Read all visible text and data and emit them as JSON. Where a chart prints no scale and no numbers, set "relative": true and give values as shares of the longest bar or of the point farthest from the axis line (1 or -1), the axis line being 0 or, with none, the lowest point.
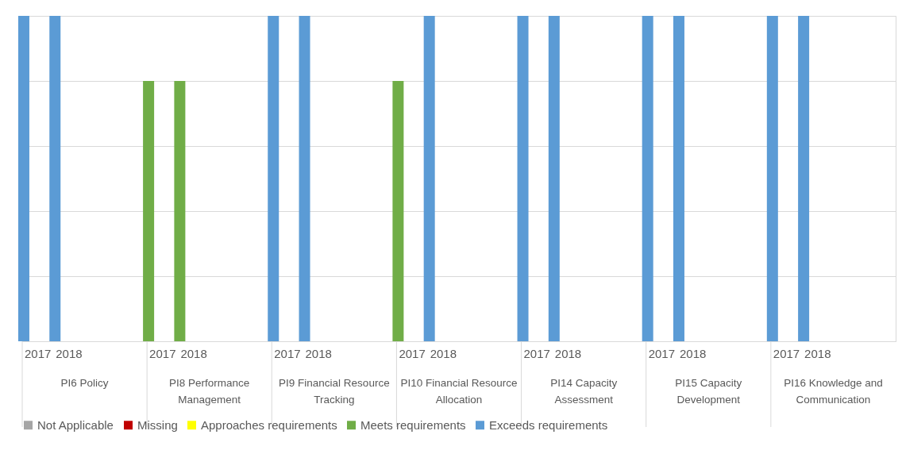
{
  "chart_data": {
    "type": "bar",
    "relative": true,
    "stacked": true,
    "grid": "y",
    "legend": "bottom",
    "categories": [
      "2017",
      "2018",
      null,
      null,
      "2017",
      "2018",
      null,
      null,
      "2017",
      "2018",
      null,
      null,
      "2017",
      "2018",
      null,
      null,
      "2017",
      "2018",
      null,
      null,
      "2017",
      "2018",
      null,
      null,
      "2017",
      "2018",
      null,
      null
    ],
    "annotations": [
      "PI6 Policy",
      "PI8 Performance Management",
      "PI9 Financial Resource Tracking",
      "PI10 Financial Resource Allocation",
      "PI14 Capacity Assessment",
      "PI15 Capacity Development",
      "PI16 Knowledge and Communication"
    ],
    "series": [
      {
        "name": "Not Applicable",
        "color": "#a5a5a5",
        "values": [
          null,
          null,
          null,
          null,
          null,
          null,
          null,
          null,
          null,
          null,
          null,
          null,
          null,
          null,
          null,
          null,
          null,
          null,
          null,
          null,
          null,
          null,
          null,
          null,
          null,
          null,
          null,
          null
        ]
      },
      {
        "name": "Missing",
        "color": "#c00000",
        "values": [
          null,
          null,
          null,
          null,
          null,
          null,
          null,
          null,
          null,
          null,
          null,
          null,
          null,
          null,
          null,
          null,
          null,
          null,
          null,
          null,
          null,
          null,
          null,
          null,
          null,
          null,
          null,
          null
        ]
      },
      {
        "name": "Approaches requirements",
        "color": "#ffff00",
        "values": [
          null,
          null,
          null,
          null,
          null,
          null,
          null,
          null,
          null,
          null,
          null,
          null,
          null,
          null,
          null,
          null,
          null,
          null,
          null,
          null,
          null,
          null,
          null,
          null,
          null,
          null,
          null,
          null
        ]
      },
      {
        "name": "Meets requirements",
        "color": "#70ad47",
        "values": [
          null,
          null,
          null,
          null,
          0.8,
          0.8,
          null,
          null,
          null,
          null,
          null,
          null,
          0.8,
          null,
          null,
          null,
          null,
          null,
          null,
          null,
          null,
          null,
          null,
          null,
          null,
          null,
          null,
          null
        ]
      },
      {
        "name": "Exceeds requirements",
        "color": "#5b9bd5",
        "values": [
          1,
          1,
          null,
          null,
          null,
          null,
          null,
          null,
          1,
          1,
          null,
          null,
          null,
          1,
          null,
          null,
          1,
          1,
          null,
          null,
          1,
          1,
          null,
          null,
          1,
          1,
          null,
          null
        ]
      }
    ]
  }
}
